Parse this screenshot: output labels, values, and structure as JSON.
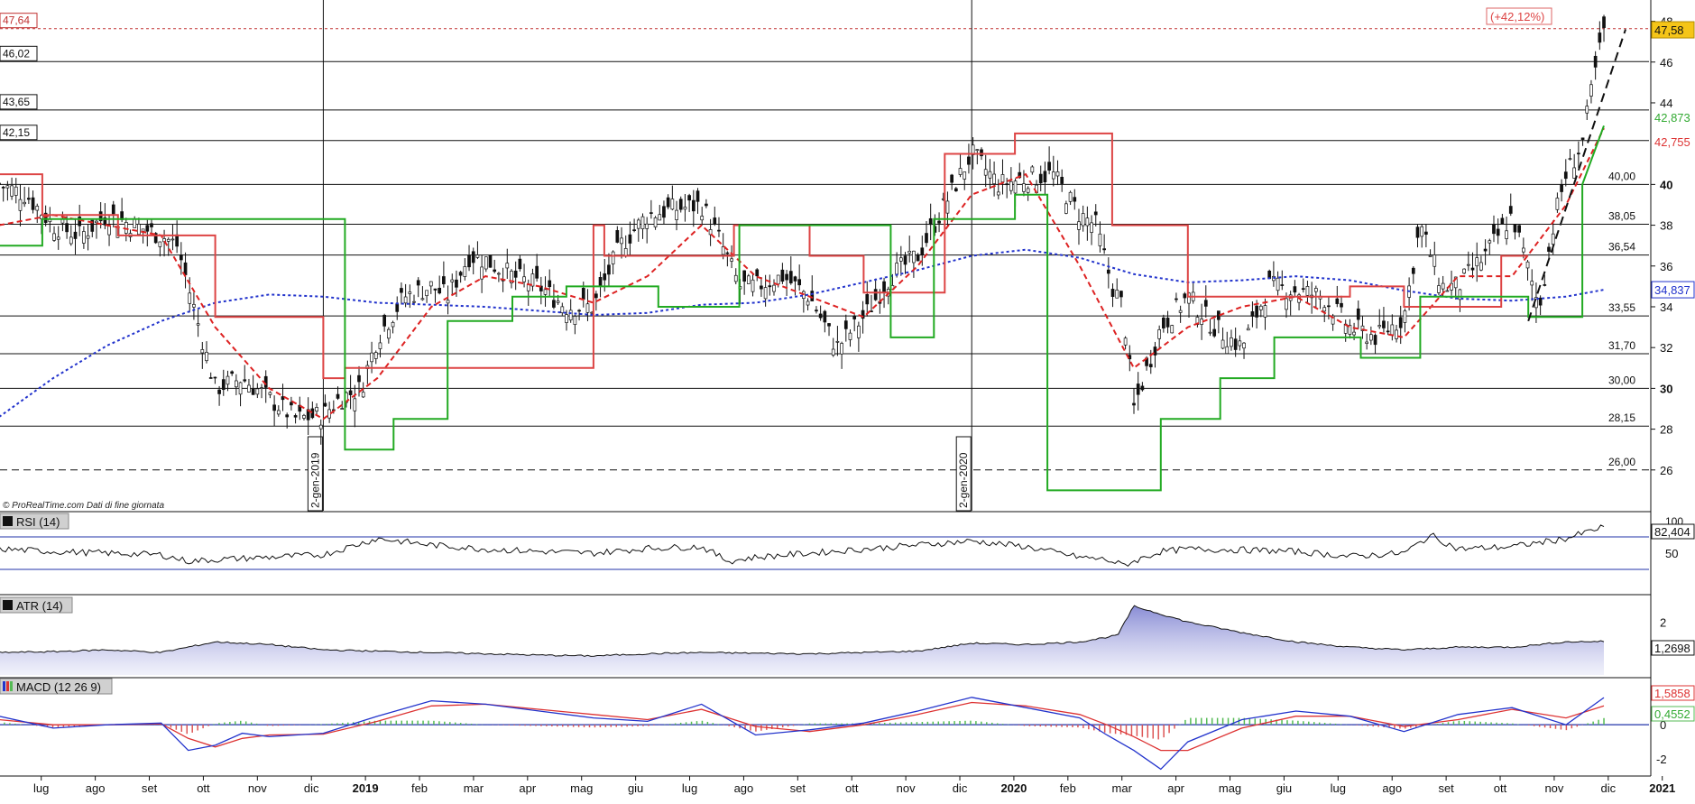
{
  "footer_note": "© ProRealTime.com  Dati di fine giornata",
  "chart_data": [
    {
      "type": "candlestick",
      "panel": "price",
      "title": "",
      "y_ticks": [
        26,
        28,
        30,
        32,
        34,
        36,
        38,
        40,
        42,
        44,
        46,
        48
      ],
      "y_tick_labels": [
        "26",
        "28",
        "30",
        "32",
        "34",
        "36",
        "38",
        "40",
        "42",
        "44",
        "46",
        "48"
      ],
      "ylim": [
        24,
        48.6
      ],
      "x_labels": [
        "lug",
        "ago",
        "set",
        "ott",
        "nov",
        "dic",
        "2019",
        "feb",
        "mar",
        "apr",
        "mag",
        "giu",
        "lug",
        "ago",
        "set",
        "ott",
        "nov",
        "dic",
        "2020",
        "feb",
        "mar",
        "apr",
        "mag",
        "giu",
        "lug",
        "ago",
        "set",
        "ott",
        "nov",
        "dic",
        "2021"
      ],
      "x_label_bold": [
        "2019",
        "2020",
        "2021"
      ],
      "x_range_months": [
        0,
        30.5
      ],
      "close_path_months": [
        0,
        0.5,
        1,
        1.5,
        2,
        2.5,
        3,
        3.3,
        3.6,
        4,
        4.5,
        5,
        5.5,
        6,
        6.3,
        6.7,
        7,
        7.5,
        8,
        8.3,
        8.7,
        9,
        9.5,
        10,
        10.5,
        11,
        11.5,
        12,
        12.5,
        13,
        13.3,
        13.7,
        14,
        14.5,
        15,
        15.5,
        16,
        16.5,
        17,
        17.5,
        18,
        18.5,
        19,
        19.5,
        20,
        20.3,
        20.6,
        20.8,
        21,
        21.5,
        22,
        22.5,
        23,
        23.5,
        24,
        24.5,
        25,
        25.5,
        26,
        26.3,
        26.7,
        27,
        27.5,
        28,
        28.5,
        28.8,
        29,
        29.3,
        29.5,
        29.7
      ],
      "close_path_values": [
        40,
        39.5,
        38,
        37.5,
        38.5,
        38,
        37.5,
        37,
        34,
        30,
        30.5,
        29.5,
        28.5,
        28.7,
        29.5,
        30,
        32.5,
        34.5,
        35,
        34.5,
        36.5,
        36.3,
        35.5,
        35,
        34,
        34,
        37,
        38.5,
        38.8,
        39,
        37.5,
        35,
        35,
        35.5,
        34.5,
        32,
        33.5,
        35.5,
        36.5,
        39,
        41.5,
        40,
        40.3,
        40.5,
        38.5,
        38,
        35,
        34,
        29,
        33,
        34.5,
        33,
        32,
        35,
        34.8,
        34.5,
        33,
        32.5,
        33.5,
        38,
        35,
        35,
        36.5,
        38.5,
        34,
        38.5,
        40.5,
        42,
        45,
        47.58
      ],
      "annotations": {
        "last_price": "47,58",
        "prev_high_left": "47,64",
        "perf_label": "(+42,12%)",
        "green_indicator_value": "42,873",
        "red_indicator_value": "42,755",
        "blue_ma_value": "34,837"
      },
      "horizontal_levels": [
        {
          "value": 46.02,
          "label": "46,02",
          "label_side": "left"
        },
        {
          "value": 43.65,
          "label": "43,65",
          "label_side": "left"
        },
        {
          "value": 42.15,
          "label": "42,15",
          "label_side": "left"
        },
        {
          "value": 40.0,
          "label": "40,00",
          "label_side": "right"
        },
        {
          "value": 38.05,
          "label": "38,05",
          "label_side": "right"
        },
        {
          "value": 36.54,
          "label": "36,54",
          "label_side": "right"
        },
        {
          "value": 33.55,
          "label": "33,55",
          "label_side": "right"
        },
        {
          "value": 31.7,
          "label": "31,70",
          "label_side": "right"
        },
        {
          "value": 30.0,
          "label": "30,00",
          "label_side": "right"
        },
        {
          "value": 28.15,
          "label": "28,15",
          "label_side": "right"
        },
        {
          "value": 26.0,
          "label": "26,00",
          "label_side": "right",
          "dashed": true
        },
        {
          "value": 47.64,
          "label": "47,64",
          "label_side": "left",
          "dashed": true,
          "color": "#c03030"
        }
      ],
      "vertical_markers": [
        {
          "x_month": 6.0,
          "label": "2-gen-2019"
        },
        {
          "x_month": 18.0,
          "label": "2-gen-2020"
        }
      ],
      "series": [
        {
          "kind": "ma",
          "color": "#2233cc",
          "dash": "dotted",
          "x": [
            0,
            1,
            2,
            3,
            4,
            5,
            6,
            7,
            8,
            9,
            10,
            11,
            12,
            13,
            14,
            15,
            16,
            17,
            18,
            19,
            20,
            21,
            22,
            23,
            24,
            25,
            26,
            27,
            28,
            29,
            29.7
          ],
          "y": [
            28.6,
            30.5,
            32.1,
            33.3,
            34.2,
            34.6,
            34.5,
            34.2,
            34.1,
            34.0,
            33.8,
            33.6,
            33.7,
            34.1,
            34.2,
            34.6,
            35.2,
            35.8,
            36.5,
            36.8,
            36.4,
            35.6,
            35.2,
            35.3,
            35.5,
            35.3,
            34.8,
            34.4,
            34.3,
            34.5,
            34.837
          ]
        },
        {
          "kind": "ma",
          "color": "#dd2222",
          "dash": "dashed",
          "x": [
            0,
            1,
            2,
            3,
            4,
            5,
            6,
            7,
            8,
            9,
            10,
            11,
            12,
            13,
            14,
            15,
            16,
            17,
            18,
            19,
            20,
            21,
            22,
            23,
            24,
            25,
            26,
            27,
            28,
            29,
            29.7
          ],
          "y": [
            38,
            38.5,
            38,
            37.5,
            33,
            30,
            28.5,
            30.5,
            34,
            35.5,
            35,
            34.2,
            35.5,
            38,
            35.5,
            34.5,
            33.5,
            36,
            39.5,
            40.5,
            36,
            31,
            33,
            34,
            34.5,
            33,
            32.5,
            35.5,
            35.5,
            39,
            42.755
          ]
        },
        {
          "kind": "stop_down",
          "color": "#dd4444",
          "x": [
            0,
            0.8,
            0.8,
            2.2,
            2.2,
            4,
            4,
            6,
            6,
            6.4,
            6.4,
            11,
            11,
            11.2,
            11.2,
            13.6,
            13.6,
            15,
            15,
            16,
            16,
            17.5,
            17.5,
            18.8,
            18.8,
            20.6,
            20.6,
            22,
            22,
            25,
            25,
            26,
            26,
            27.8,
            27.8,
            28.3
          ],
          "y": [
            40.5,
            40.5,
            38.5,
            38.5,
            37.5,
            37.5,
            33.5,
            33.5,
            30.5,
            30.5,
            31,
            31,
            38,
            38,
            36.5,
            36.5,
            38,
            38,
            36.5,
            36.5,
            34.7,
            34.7,
            41.5,
            41.5,
            42.5,
            42.5,
            38,
            38,
            34.5,
            34.5,
            35,
            35,
            34,
            34,
            36.5,
            36.5
          ]
        },
        {
          "kind": "stop_up",
          "color": "#22aa22",
          "x": [
            0,
            0.8,
            0.8,
            6.4,
            6.4,
            7.3,
            7.3,
            8.3,
            8.3,
            9.5,
            9.5,
            10.5,
            10.5,
            12.2,
            12.2,
            13.7,
            13.7,
            16.5,
            16.5,
            17.3,
            17.3,
            18.8,
            18.8,
            19.4,
            19.4,
            21.5,
            21.5,
            22.6,
            22.6,
            23.6,
            23.6,
            25.2,
            25.2,
            26.3,
            26.3,
            28.3,
            28.3,
            29.3,
            29.3,
            29.7
          ],
          "y": [
            37,
            37,
            38.3,
            38.3,
            27,
            27,
            28.5,
            28.5,
            33.3,
            33.3,
            34.5,
            34.5,
            35,
            35,
            34,
            34,
            38,
            38,
            32.5,
            32.5,
            38.3,
            38.3,
            39.5,
            39.5,
            25,
            25,
            28.5,
            28.5,
            30.5,
            30.5,
            32.5,
            32.5,
            31.5,
            31.5,
            34.5,
            34.5,
            33.5,
            33.5,
            40,
            42.873
          ]
        },
        {
          "kind": "trendline",
          "color": "#111111",
          "dash": "dashed",
          "x": [
            28.3,
            30.1
          ],
          "y": [
            33.3,
            47.6
          ]
        }
      ]
    },
    {
      "type": "line",
      "panel": "rsi",
      "label": "RSI (14)",
      "ylim": [
        0,
        100
      ],
      "y_ticks": [
        50
      ],
      "levels": [
        70,
        30
      ],
      "last_value_label": "82,404",
      "top_tick_label": "100",
      "x_months": [
        0,
        1,
        2,
        3,
        3.5,
        4,
        5,
        6,
        7,
        8,
        9,
        10,
        11,
        12,
        13,
        13.5,
        14,
        15,
        16,
        17,
        18,
        19,
        20,
        20.5,
        20.8,
        21.5,
        22,
        23,
        24,
        25,
        26,
        26.5,
        27,
        28,
        29,
        29.7
      ],
      "values": [
        55,
        52,
        50,
        48,
        40,
        42,
        45,
        48,
        68,
        60,
        55,
        52,
        50,
        56,
        58,
        40,
        45,
        50,
        55,
        60,
        65,
        58,
        45,
        42,
        35,
        52,
        55,
        54,
        52,
        46,
        50,
        72,
        55,
        58,
        68,
        82.404
      ]
    },
    {
      "type": "area",
      "panel": "atr",
      "label": "ATR (14)",
      "ylim": [
        0,
        3
      ],
      "y_ticks": [
        2
      ],
      "last_value_label": "1,2698",
      "x_months": [
        0,
        1,
        2,
        3,
        4,
        5,
        6,
        7,
        8,
        9,
        10,
        11,
        12,
        13,
        14,
        15,
        16,
        17,
        18,
        19,
        20,
        20.7,
        21,
        21.5,
        22,
        23,
        24,
        25,
        26,
        27,
        28,
        29,
        29.7
      ],
      "values": [
        0.85,
        0.88,
        0.95,
        0.85,
        1.25,
        1.15,
        0.95,
        0.9,
        0.85,
        0.8,
        0.75,
        0.72,
        0.8,
        0.85,
        0.82,
        0.8,
        0.85,
        0.9,
        1.2,
        1.15,
        1.25,
        1.5,
        2.6,
        2.3,
        2.0,
        1.6,
        1.25,
        1.05,
        0.95,
        1.05,
        1.05,
        1.25,
        1.2698
      ]
    },
    {
      "type": "line",
      "panel": "macd",
      "label": "MACD (12 26 9)",
      "ylim": [
        -3,
        2.7
      ],
      "y_ticks": [
        0,
        -2
      ],
      "macd_last_label": "1,5858",
      "hist_last_label": "0,4552",
      "x_months": [
        0,
        1,
        2,
        3,
        3.5,
        4,
        4.5,
        5,
        6,
        7,
        8,
        9,
        10,
        11,
        12,
        13,
        14,
        15,
        16,
        17,
        18,
        19,
        20,
        20.5,
        21,
        21.5,
        22,
        23,
        24,
        25,
        26,
        27,
        28,
        29,
        29.7
      ],
      "macd_values": [
        0.5,
        -0.2,
        0,
        0.1,
        -1.5,
        -1.2,
        -0.5,
        -0.7,
        -0.5,
        0.5,
        1.4,
        1.2,
        0.8,
        0.4,
        0.2,
        1.2,
        -0.6,
        -0.3,
        0.1,
        0.8,
        1.6,
        1.0,
        0.4,
        -0.6,
        -1.5,
        -2.6,
        -1.0,
        0.3,
        0.8,
        0.5,
        -0.4,
        0.6,
        1.0,
        0.0,
        1.5858
      ],
      "signal_values": [
        0.3,
        0,
        0,
        0.05,
        -0.8,
        -1.3,
        -0.8,
        -0.6,
        -0.55,
        0.2,
        1.1,
        1.2,
        0.9,
        0.6,
        0.3,
        0.9,
        -0.1,
        -0.4,
        0,
        0.6,
        1.3,
        1.1,
        0.6,
        0.0,
        -0.7,
        -1.5,
        -1.5,
        -0.2,
        0.5,
        0.5,
        -0.1,
        0.3,
        0.9,
        0.4,
        1.1
      ]
    }
  ]
}
